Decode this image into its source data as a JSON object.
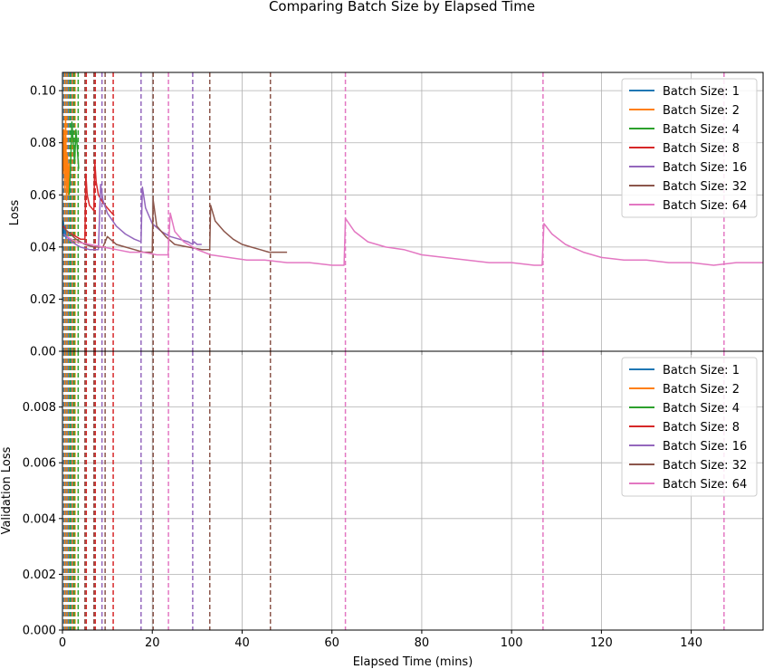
{
  "chart_data": {
    "title": "Comparing Batch Size by Elapsed Time",
    "colors": {
      "Batch Size: 1": "#1f77b4",
      "Batch Size: 2": "#ff7f0e",
      "Batch Size: 4": "#2ca02c",
      "Batch Size: 8": "#d62728",
      "Batch Size: 16": "#9467bd",
      "Batch Size: 32": "#8c564b",
      "Batch Size: 64": "#e377c2"
    },
    "panels": [
      {
        "type": "line",
        "ylabel": "Loss",
        "xlabel": "",
        "xlim": [
          0,
          156
        ],
        "ylim": [
          0,
          0.107
        ],
        "yticks": [
          0.0,
          0.02,
          0.04,
          0.06,
          0.08,
          0.1
        ],
        "ytick_labels": [
          "0.00",
          "0.02",
          "0.04",
          "0.06",
          "0.08",
          "0.10"
        ],
        "grid": true,
        "legend_position": "top-right",
        "series": [
          {
            "name": "Batch Size: 1",
            "x": [
              0.05,
              0.2,
              0.4,
              0.6,
              0.8
            ],
            "y": [
              0.045,
              0.05,
              0.044,
              0.048,
              0.043
            ]
          },
          {
            "name": "Batch Size: 2",
            "x": [
              0.1,
              0.3,
              0.5,
              0.7,
              0.9,
              1.1,
              1.3,
              1.5,
              1.7
            ],
            "y": [
              0.068,
              0.085,
              0.062,
              0.09,
              0.058,
              0.075,
              0.06,
              0.072,
              0.065
            ]
          },
          {
            "name": "Batch Size: 4",
            "x": [
              1.5,
              1.8,
              2.1,
              2.4,
              2.7,
              3.0,
              3.3,
              3.6
            ],
            "y": [
              0.06,
              0.07,
              0.088,
              0.08,
              0.072,
              0.085,
              0.078,
              0.07
            ]
          },
          {
            "name": "Batch Size: 8",
            "x": [
              0.2,
              1,
              2,
              3,
              4,
              5,
              5.2,
              5.5,
              6,
              7,
              7.2,
              7.5,
              8,
              9,
              10,
              11,
              11.5
            ],
            "y": [
              0.048,
              0.046,
              0.045,
              0.044,
              0.043,
              0.043,
              0.068,
              0.06,
              0.056,
              0.054,
              0.073,
              0.065,
              0.06,
              0.057,
              0.055,
              0.053,
              0.052
            ]
          },
          {
            "name": "Batch Size: 16",
            "x": [
              0.3,
              2,
              4,
              6,
              8,
              8.5,
              9,
              10,
              12,
              14,
              16,
              17.5,
              17.8,
              18.5,
              20,
              22,
              24,
              26,
              28,
              29,
              29.3,
              30,
              31
            ],
            "y": [
              0.045,
              0.042,
              0.04,
              0.039,
              0.039,
              0.064,
              0.058,
              0.053,
              0.048,
              0.045,
              0.043,
              0.042,
              0.063,
              0.055,
              0.049,
              0.046,
              0.044,
              0.043,
              0.042,
              0.041,
              0.042,
              0.041,
              0.041
            ]
          },
          {
            "name": "Batch Size: 32",
            "x": [
              0.5,
              3,
              5,
              7,
              9,
              10,
              12,
              14,
              16,
              18,
              20,
              20.2,
              21,
              23,
              25,
              28,
              31,
              32.8,
              33,
              34,
              36,
              38,
              40,
              42,
              44,
              46,
              48,
              50
            ],
            "y": [
              0.047,
              0.043,
              0.041,
              0.04,
              0.04,
              0.044,
              0.041,
              0.04,
              0.039,
              0.038,
              0.038,
              0.058,
              0.048,
              0.044,
              0.041,
              0.04,
              0.039,
              0.039,
              0.056,
              0.05,
              0.046,
              0.043,
              0.041,
              0.04,
              0.039,
              0.038,
              0.038,
              0.038
            ]
          },
          {
            "name": "Batch Size: 64",
            "x": [
              1,
              3,
              6,
              9,
              12,
              15,
              18,
              21,
              23.5,
              24,
              25,
              27,
              30,
              33,
              37,
              41,
              45,
              50,
              55,
              60,
              62.7,
              63,
              65,
              68,
              72,
              76,
              80,
              85,
              90,
              95,
              100,
              105,
              106.8,
              107.2,
              109,
              112,
              116,
              120,
              125,
              130,
              135,
              140,
              145,
              150,
              156
            ],
            "y": [
              0.044,
              0.042,
              0.041,
              0.04,
              0.039,
              0.038,
              0.038,
              0.037,
              0.037,
              0.053,
              0.046,
              0.042,
              0.039,
              0.037,
              0.036,
              0.035,
              0.035,
              0.034,
              0.034,
              0.033,
              0.033,
              0.051,
              0.046,
              0.042,
              0.04,
              0.039,
              0.037,
              0.036,
              0.035,
              0.034,
              0.034,
              0.033,
              0.033,
              0.049,
              0.045,
              0.041,
              0.038,
              0.036,
              0.035,
              0.035,
              0.034,
              0.034,
              0.033,
              0.034,
              0.034
            ]
          }
        ]
      },
      {
        "type": "line",
        "ylabel": "Validation Loss",
        "xlabel": "Elapsed Time (mins)",
        "xlim": [
          0,
          156
        ],
        "ylim": [
          0,
          0.01
        ],
        "xticks": [
          0,
          20,
          40,
          60,
          80,
          100,
          120,
          140
        ],
        "xtick_labels": [
          "0",
          "20",
          "40",
          "60",
          "80",
          "100",
          "120",
          "140"
        ],
        "yticks": [
          0.0,
          0.002,
          0.004,
          0.006,
          0.008
        ],
        "ytick_labels": [
          "0.000",
          "0.002",
          "0.004",
          "0.006",
          "0.008"
        ],
        "grid": true,
        "legend_position": "top-right",
        "series": [
          {
            "name": "Batch Size: 1",
            "x": [],
            "y": []
          },
          {
            "name": "Batch Size: 2",
            "x": [],
            "y": []
          },
          {
            "name": "Batch Size: 4",
            "x": [],
            "y": []
          },
          {
            "name": "Batch Size: 8",
            "x": [],
            "y": []
          },
          {
            "name": "Batch Size: 16",
            "x": [],
            "y": []
          },
          {
            "name": "Batch Size: 32",
            "x": [],
            "y": []
          },
          {
            "name": "Batch Size: 64",
            "x": [],
            "y": []
          }
        ]
      }
    ],
    "epoch_markers": [
      {
        "series": "Batch Size: 1",
        "x": [
          0.3,
          0.6,
          0.9,
          1.2,
          1.5,
          1.8,
          2.1,
          2.4,
          2.7
        ]
      },
      {
        "series": "Batch Size: 2",
        "x": [
          0.5,
          1.0,
          1.6,
          2.2,
          2.8
        ]
      },
      {
        "series": "Batch Size: 4",
        "x": [
          1.7,
          2.6,
          3.5
        ]
      },
      {
        "series": "Batch Size: 8",
        "x": [
          5.3,
          7.3,
          11.3
        ]
      },
      {
        "series": "Batch Size: 16",
        "x": [
          8.8,
          17.5,
          29.0
        ]
      },
      {
        "series": "Batch Size: 32",
        "x": [
          5.0,
          7.0,
          9.5,
          20.2,
          32.8,
          46.3
        ]
      },
      {
        "series": "Batch Size: 64",
        "x": [
          23.6,
          63.0,
          107.0,
          147.3
        ]
      }
    ]
  }
}
